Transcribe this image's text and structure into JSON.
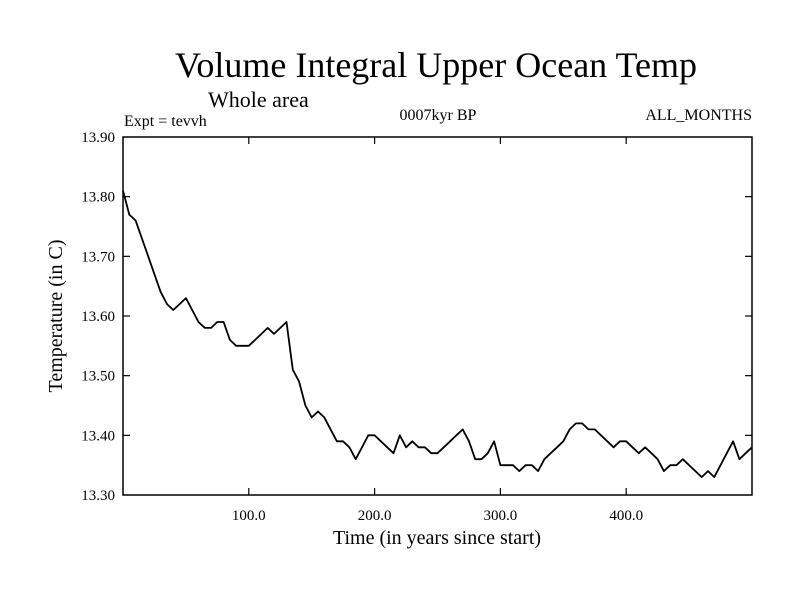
{
  "chart_data": {
    "type": "line",
    "title": "Volume Integral Upper Ocean Temp",
    "subtitle": "Whole area",
    "annotations": {
      "left": "Expt = tevvh",
      "center": "0007kyr BP",
      "right": "ALL_MONTHS"
    },
    "xlabel": "Time (in years since start)",
    "ylabel": "Temperature (in C)",
    "xlim": [
      0,
      500
    ],
    "ylim": [
      13.3,
      13.9
    ],
    "xticks": [
      100,
      200,
      300,
      400
    ],
    "xtick_labels": [
      "100.0",
      "200.0",
      "300.0",
      "400.0"
    ],
    "yticks": [
      13.3,
      13.4,
      13.5,
      13.6,
      13.7,
      13.8,
      13.9
    ],
    "ytick_labels": [
      "13.30",
      "13.40",
      "13.50",
      "13.60",
      "13.70",
      "13.80",
      "13.90"
    ],
    "grid": false,
    "series": [
      {
        "color": "#000000",
        "x": [
          0,
          5,
          10,
          15,
          20,
          25,
          30,
          35,
          40,
          45,
          50,
          55,
          60,
          65,
          70,
          75,
          80,
          85,
          90,
          95,
          100,
          105,
          110,
          115,
          120,
          125,
          130,
          135,
          140,
          145,
          150,
          155,
          160,
          165,
          170,
          175,
          180,
          185,
          190,
          195,
          200,
          205,
          210,
          215,
          220,
          225,
          230,
          235,
          240,
          245,
          250,
          255,
          260,
          265,
          270,
          275,
          280,
          285,
          290,
          295,
          300,
          305,
          310,
          315,
          320,
          325,
          330,
          335,
          340,
          345,
          350,
          355,
          360,
          365,
          370,
          375,
          380,
          385,
          390,
          395,
          400,
          405,
          410,
          415,
          420,
          425,
          430,
          435,
          440,
          445,
          450,
          455,
          460,
          465,
          470,
          475,
          480,
          485,
          490,
          495,
          500
        ],
        "y": [
          13.81,
          13.77,
          13.76,
          13.73,
          13.7,
          13.67,
          13.64,
          13.62,
          13.61,
          13.62,
          13.63,
          13.61,
          13.59,
          13.58,
          13.58,
          13.59,
          13.59,
          13.56,
          13.55,
          13.55,
          13.55,
          13.56,
          13.57,
          13.58,
          13.57,
          13.58,
          13.59,
          13.51,
          13.49,
          13.45,
          13.43,
          13.44,
          13.43,
          13.41,
          13.39,
          13.39,
          13.38,
          13.36,
          13.38,
          13.4,
          13.4,
          13.39,
          13.38,
          13.37,
          13.4,
          13.38,
          13.39,
          13.38,
          13.38,
          13.37,
          13.37,
          13.38,
          13.39,
          13.4,
          13.41,
          13.39,
          13.36,
          13.36,
          13.37,
          13.39,
          13.35,
          13.35,
          13.35,
          13.34,
          13.35,
          13.35,
          13.34,
          13.36,
          13.37,
          13.38,
          13.39,
          13.41,
          13.42,
          13.42,
          13.41,
          13.41,
          13.4,
          13.39,
          13.38,
          13.39,
          13.39,
          13.38,
          13.37,
          13.38,
          13.37,
          13.36,
          13.34,
          13.35,
          13.35,
          13.36,
          13.35,
          13.34,
          13.33,
          13.34,
          13.33,
          13.35,
          13.37,
          13.39,
          13.36,
          13.37,
          13.38
        ]
      }
    ]
  }
}
